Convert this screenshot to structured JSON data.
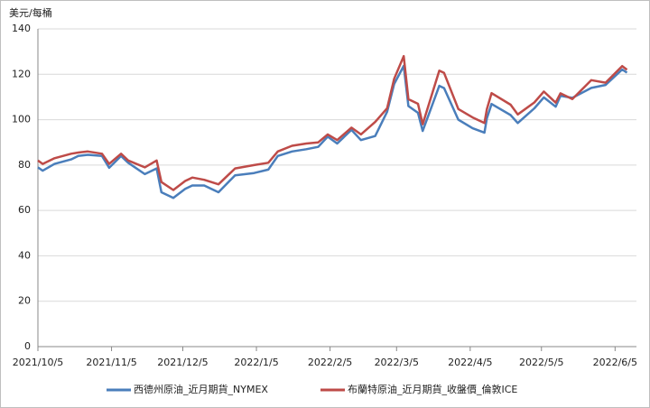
{
  "chart_data": {
    "type": "line",
    "y_label": "美元/每桶",
    "x": [
      "2021/10/5",
      "2021/10/7",
      "2021/10/12",
      "2021/10/19",
      "2021/10/22",
      "2021/10/26",
      "2021/11/1",
      "2021/11/4",
      "2021/11/9",
      "2021/11/12",
      "2021/11/19",
      "2021/11/24",
      "2021/11/26",
      "2021/12/1",
      "2021/12/6",
      "2021/12/9",
      "2021/12/14",
      "2021/12/20",
      "2021/12/27",
      "2022/1/4",
      "2022/1/10",
      "2022/1/14",
      "2022/1/20",
      "2022/1/26",
      "2022/1/31",
      "2022/2/4",
      "2022/2/8",
      "2022/2/14",
      "2022/2/18",
      "2022/2/24",
      "2022/3/1",
      "2022/3/4",
      "2022/3/8",
      "2022/3/10",
      "2022/3/14",
      "2022/3/16",
      "2022/3/23",
      "2022/3/25",
      "2022/3/31",
      "2022/4/6",
      "2022/4/11",
      "2022/4/12",
      "2022/4/14",
      "2022/4/22",
      "2022/4/25",
      "2022/5/2",
      "2022/5/6",
      "2022/5/11",
      "2022/5/13",
      "2022/5/18",
      "2022/5/26",
      "2022/6/1",
      "2022/6/8",
      "2022/6/10"
    ],
    "series": [
      {
        "name": "西德州原油_近月期貨_NYMEX",
        "color": "#4a7ebb",
        "values": [
          79,
          77.5,
          80.5,
          82.5,
          84,
          84.5,
          84,
          78.8,
          84,
          81,
          76,
          78.5,
          68,
          65.5,
          69.5,
          71,
          71,
          68,
          75.5,
          76.5,
          78,
          84,
          86,
          87,
          88,
          92.5,
          89.5,
          95.5,
          91,
          92.8,
          103.5,
          115.7,
          123.7,
          106,
          103,
          95,
          114.9,
          113.9,
          100,
          96.2,
          94.3,
          100.6,
          106.9,
          102,
          98.5,
          105,
          109.8,
          105.7,
          110.5,
          109.6,
          114,
          115.3,
          122.1,
          120.7
        ]
      },
      {
        "name": "布蘭特原油_近月期貨_收盤價_倫敦ICE",
        "color": "#be4b48",
        "values": [
          82,
          80.5,
          83,
          85,
          85.5,
          86,
          85,
          80.5,
          85,
          82,
          79,
          82,
          72.5,
          69,
          73,
          74.5,
          73.5,
          71.5,
          78.5,
          80,
          81,
          86,
          88.5,
          89.5,
          90,
          93.5,
          91,
          96.5,
          93.5,
          99,
          105,
          118,
          128,
          109,
          107,
          98,
          121.6,
          120.6,
          104.7,
          101,
          98.5,
          104.6,
          111.7,
          106.6,
          102.3,
          107.6,
          112.4,
          107.5,
          111.6,
          109.1,
          117.4,
          116.3,
          123.6,
          122
        ]
      }
    ],
    "xlim": [
      "2021/10/5",
      "2022/6/14"
    ],
    "xticks": [
      "2021/10/5",
      "2021/11/5",
      "2021/12/5",
      "2022/1/5",
      "2022/2/5",
      "2022/3/5",
      "2022/4/5",
      "2022/5/5",
      "2022/6/5"
    ],
    "ylim": [
      0,
      140
    ],
    "yticks": [
      0,
      20,
      40,
      60,
      80,
      100,
      120,
      140
    ],
    "grid": true,
    "legend": "bottom"
  }
}
